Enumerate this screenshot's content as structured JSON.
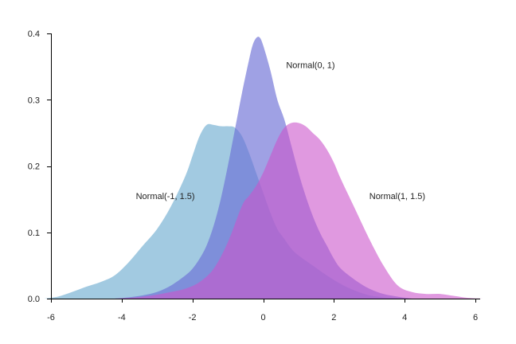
{
  "chart_data": {
    "type": "area",
    "xlim": [
      -6,
      6
    ],
    "ylim": [
      0,
      0.4
    ],
    "x_ticks": [
      -6,
      -4,
      -2,
      0,
      2,
      4,
      6
    ],
    "x_tick_labels": [
      "-6",
      "-4",
      "-2",
      "0",
      "2",
      "4",
      "6"
    ],
    "y_ticks": [
      0,
      0.1,
      0.2,
      0.3,
      0.4
    ],
    "y_tick_labels": [
      "0.0",
      "0.1",
      "0.2",
      "0.3",
      "0.4"
    ],
    "grid": false,
    "series": [
      {
        "name": "Normal(-1, 1.5)",
        "color": "#7ab3d4",
        "opacity": 0.7,
        "label_pos": [
          -3.6,
          0.15
        ],
        "x": [
          -6.2,
          -5.8,
          -5.4,
          -5.0,
          -4.6,
          -4.2,
          -3.8,
          -3.4,
          -3.0,
          -2.6,
          -2.2,
          -2.0,
          -1.8,
          -1.6,
          -1.4,
          -1.2,
          -1.0,
          -0.8,
          -0.6,
          -0.4,
          -0.2,
          0.0,
          0.2,
          0.4,
          0.6,
          0.8,
          1.0,
          1.4,
          1.8,
          2.2,
          2.6,
          3.0,
          3.4,
          3.8,
          4.2
        ],
        "y": [
          0.0,
          0.003,
          0.01,
          0.018,
          0.025,
          0.035,
          0.055,
          0.08,
          0.105,
          0.14,
          0.185,
          0.215,
          0.245,
          0.262,
          0.262,
          0.26,
          0.26,
          0.258,
          0.245,
          0.22,
          0.19,
          0.16,
          0.13,
          0.105,
          0.09,
          0.075,
          0.065,
          0.05,
          0.035,
          0.022,
          0.012,
          0.005,
          0.002,
          0.001,
          0.0
        ]
      },
      {
        "name": "Normal(0, 1)",
        "color": "#6b6fd6",
        "opacity": 0.65,
        "label_pos": [
          0.65,
          0.348
        ],
        "x": [
          -4.2,
          -3.8,
          -3.4,
          -3.0,
          -2.6,
          -2.2,
          -2.0,
          -1.8,
          -1.6,
          -1.4,
          -1.2,
          -1.0,
          -0.8,
          -0.6,
          -0.4,
          -0.3,
          -0.2,
          -0.1,
          0.0,
          0.2,
          0.4,
          0.6,
          0.8,
          1.0,
          1.2,
          1.4,
          1.6,
          1.8,
          2.0,
          2.2,
          2.6,
          3.0,
          3.4,
          3.8,
          4.2
        ],
        "y": [
          0.0,
          0.002,
          0.005,
          0.01,
          0.02,
          0.035,
          0.045,
          0.06,
          0.08,
          0.11,
          0.15,
          0.2,
          0.255,
          0.31,
          0.36,
          0.382,
          0.393,
          0.394,
          0.382,
          0.345,
          0.3,
          0.27,
          0.23,
          0.19,
          0.155,
          0.125,
          0.1,
          0.08,
          0.06,
          0.045,
          0.028,
          0.015,
          0.007,
          0.003,
          0.0
        ]
      },
      {
        "name": "Normal(1, 1.5)",
        "color": "#cc55cc",
        "opacity": 0.6,
        "label_pos": [
          3.0,
          0.15
        ],
        "x": [
          -4.2,
          -3.8,
          -3.4,
          -3.0,
          -2.6,
          -2.2,
          -1.8,
          -1.4,
          -1.0,
          -0.6,
          -0.4,
          -0.2,
          0.0,
          0.2,
          0.4,
          0.6,
          0.8,
          1.0,
          1.2,
          1.4,
          1.6,
          1.8,
          2.0,
          2.2,
          2.6,
          3.0,
          3.4,
          3.8,
          4.2,
          4.6,
          5.0,
          5.4,
          5.8,
          6.2
        ],
        "y": [
          0.0,
          0.001,
          0.003,
          0.006,
          0.01,
          0.015,
          0.025,
          0.045,
          0.085,
          0.14,
          0.155,
          0.17,
          0.19,
          0.215,
          0.24,
          0.258,
          0.265,
          0.265,
          0.26,
          0.25,
          0.24,
          0.225,
          0.205,
          0.18,
          0.135,
          0.09,
          0.05,
          0.02,
          0.01,
          0.007,
          0.007,
          0.004,
          0.001,
          0.0
        ]
      }
    ]
  }
}
